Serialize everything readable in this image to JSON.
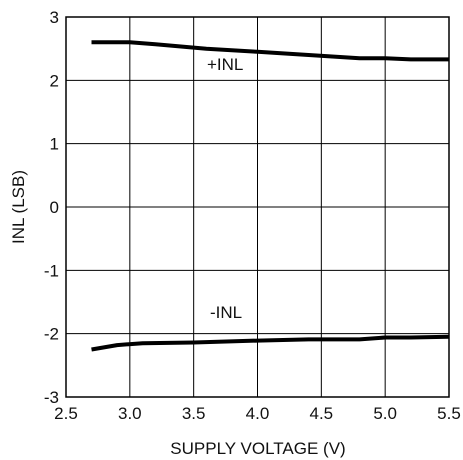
{
  "chart_data": {
    "type": "line",
    "title": "",
    "xlabel": "SUPPLY VOLTAGE (V)",
    "ylabel": "INL (LSB)",
    "xlim": [
      2.5,
      5.5
    ],
    "ylim": [
      -3,
      3
    ],
    "grid": true,
    "legend": "none",
    "x_ticks": [
      "2.5",
      "3.0",
      "3.5",
      "4.0",
      "4.5",
      "5.0",
      "5.5"
    ],
    "y_ticks": [
      "3",
      "2",
      "1",
      "0",
      "-1",
      "-2",
      "-3"
    ],
    "series": [
      {
        "name": "+INL",
        "x": [
          2.7,
          3.0,
          3.2,
          3.6,
          4.0,
          4.4,
          4.8,
          5.0,
          5.2,
          5.5
        ],
        "y": [
          2.6,
          2.6,
          2.57,
          2.5,
          2.45,
          2.4,
          2.35,
          2.35,
          2.33,
          2.33
        ]
      },
      {
        "name": "-INL",
        "x": [
          2.7,
          2.9,
          3.1,
          3.5,
          4.0,
          4.4,
          4.8,
          5.0,
          5.2,
          5.5
        ],
        "y": [
          -2.25,
          -2.18,
          -2.15,
          -2.14,
          -2.11,
          -2.09,
          -2.09,
          -2.06,
          -2.06,
          -2.05
        ]
      }
    ],
    "series_labels": [
      "+INL",
      "-INL"
    ],
    "colors": {
      "line": "#000000",
      "grid": "#000000",
      "background": "#ffffff"
    }
  }
}
